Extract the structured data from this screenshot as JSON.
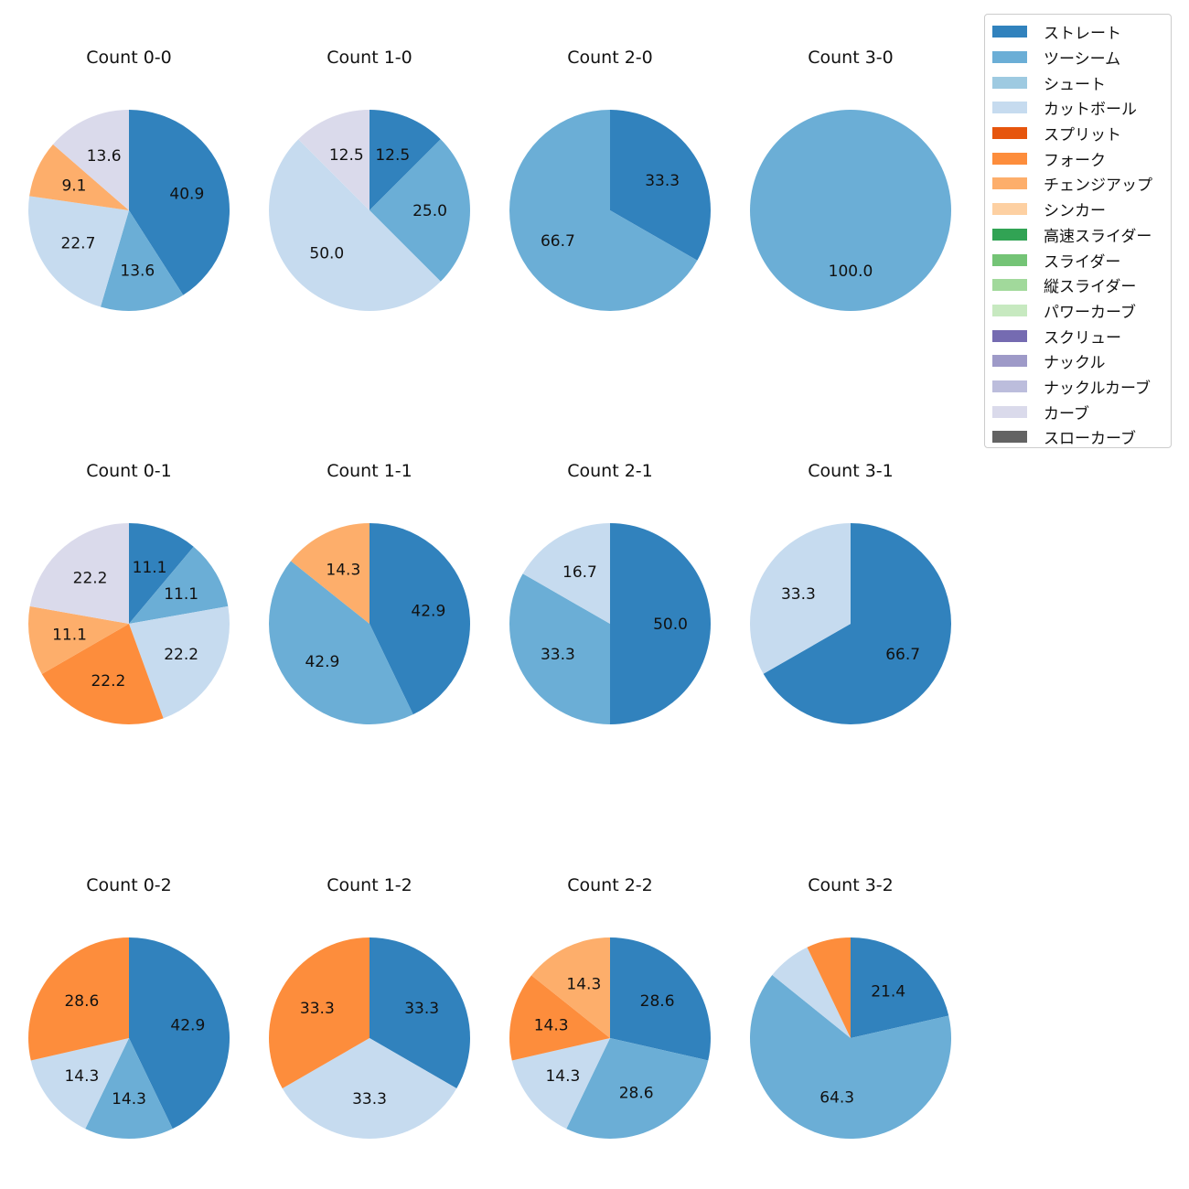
{
  "legend": [
    {
      "label": "ストレート",
      "color": "#3182bd"
    },
    {
      "label": "ツーシーム",
      "color": "#6baed6"
    },
    {
      "label": "シュート",
      "color": "#9ecae1"
    },
    {
      "label": "カットボール",
      "color": "#c6dbef"
    },
    {
      "label": "スプリット",
      "color": "#e6550d"
    },
    {
      "label": "フォーク",
      "color": "#fd8d3c"
    },
    {
      "label": "チェンジアップ",
      "color": "#fdae6b"
    },
    {
      "label": "シンカー",
      "color": "#fdd0a2"
    },
    {
      "label": "高速スライダー",
      "color": "#31a354"
    },
    {
      "label": "スライダー",
      "color": "#74c476"
    },
    {
      "label": "縦スライダー",
      "color": "#a1d99b"
    },
    {
      "label": "パワーカーブ",
      "color": "#c7e9c0"
    },
    {
      "label": "スクリュー",
      "color": "#756bb1"
    },
    {
      "label": "ナックル",
      "color": "#9e9ac8"
    },
    {
      "label": "ナックルカーブ",
      "color": "#bcbddc"
    },
    {
      "label": "カーブ",
      "color": "#dadaeb"
    },
    {
      "label": "スローカーブ",
      "color": "#636363"
    }
  ],
  "chart_data": [
    {
      "type": "pie",
      "title": "Count 0-0",
      "slices": [
        {
          "pitch": "ストレート",
          "value": 40.9,
          "label": "40.9"
        },
        {
          "pitch": "ツーシーム",
          "value": 13.6,
          "label": "13.6"
        },
        {
          "pitch": "カットボール",
          "value": 22.7,
          "label": "22.7"
        },
        {
          "pitch": "チェンジアップ",
          "value": 9.1,
          "label": "9.1"
        },
        {
          "pitch": "カーブ",
          "value": 13.6,
          "label": "13.6"
        }
      ]
    },
    {
      "type": "pie",
      "title": "Count 1-0",
      "slices": [
        {
          "pitch": "ストレート",
          "value": 12.5,
          "label": "12.5"
        },
        {
          "pitch": "ツーシーム",
          "value": 25.0,
          "label": "25.0"
        },
        {
          "pitch": "カットボール",
          "value": 50.0,
          "label": "50.0"
        },
        {
          "pitch": "カーブ",
          "value": 12.5,
          "label": "12.5"
        }
      ]
    },
    {
      "type": "pie",
      "title": "Count 2-0",
      "slices": [
        {
          "pitch": "ストレート",
          "value": 33.3,
          "label": "33.3"
        },
        {
          "pitch": "ツーシーム",
          "value": 66.7,
          "label": "66.7"
        }
      ]
    },
    {
      "type": "pie",
      "title": "Count 3-0",
      "slices": [
        {
          "pitch": "ツーシーム",
          "value": 100.0,
          "label": "100.0"
        }
      ]
    },
    {
      "type": "pie",
      "title": "Count 0-1",
      "slices": [
        {
          "pitch": "ストレート",
          "value": 11.1,
          "label": "11.1"
        },
        {
          "pitch": "ツーシーム",
          "value": 11.1,
          "label": "11.1"
        },
        {
          "pitch": "カットボール",
          "value": 22.2,
          "label": "22.2"
        },
        {
          "pitch": "フォーク",
          "value": 22.2,
          "label": "22.2"
        },
        {
          "pitch": "チェンジアップ",
          "value": 11.1,
          "label": "11.1"
        },
        {
          "pitch": "カーブ",
          "value": 22.2,
          "label": "22.2"
        }
      ]
    },
    {
      "type": "pie",
      "title": "Count 1-1",
      "slices": [
        {
          "pitch": "ストレート",
          "value": 42.9,
          "label": "42.9"
        },
        {
          "pitch": "ツーシーム",
          "value": 42.9,
          "label": "42.9"
        },
        {
          "pitch": "チェンジアップ",
          "value": 14.3,
          "label": "14.3"
        }
      ]
    },
    {
      "type": "pie",
      "title": "Count 2-1",
      "slices": [
        {
          "pitch": "ストレート",
          "value": 50.0,
          "label": "50.0"
        },
        {
          "pitch": "ツーシーム",
          "value": 33.3,
          "label": "33.3"
        },
        {
          "pitch": "カットボール",
          "value": 16.7,
          "label": "16.7"
        }
      ]
    },
    {
      "type": "pie",
      "title": "Count 3-1",
      "slices": [
        {
          "pitch": "ストレート",
          "value": 66.7,
          "label": "66.7"
        },
        {
          "pitch": "カットボール",
          "value": 33.3,
          "label": "33.3"
        }
      ]
    },
    {
      "type": "pie",
      "title": "Count 0-2",
      "slices": [
        {
          "pitch": "ストレート",
          "value": 42.9,
          "label": "42.9"
        },
        {
          "pitch": "ツーシーム",
          "value": 14.3,
          "label": "14.3"
        },
        {
          "pitch": "カットボール",
          "value": 14.3,
          "label": "14.3"
        },
        {
          "pitch": "フォーク",
          "value": 28.6,
          "label": "28.6"
        }
      ]
    },
    {
      "type": "pie",
      "title": "Count 1-2",
      "slices": [
        {
          "pitch": "ストレート",
          "value": 33.3,
          "label": "33.3"
        },
        {
          "pitch": "カットボール",
          "value": 33.3,
          "label": "33.3"
        },
        {
          "pitch": "フォーク",
          "value": 33.3,
          "label": "33.3"
        }
      ]
    },
    {
      "type": "pie",
      "title": "Count 2-2",
      "slices": [
        {
          "pitch": "ストレート",
          "value": 28.6,
          "label": "28.6"
        },
        {
          "pitch": "ツーシーム",
          "value": 28.6,
          "label": "28.6"
        },
        {
          "pitch": "カットボール",
          "value": 14.3,
          "label": "14.3"
        },
        {
          "pitch": "フォーク",
          "value": 14.3,
          "label": "14.3"
        },
        {
          "pitch": "チェンジアップ",
          "value": 14.3,
          "label": "14.3"
        }
      ]
    },
    {
      "type": "pie",
      "title": "Count 3-2",
      "slices": [
        {
          "pitch": "ストレート",
          "value": 21.4,
          "label": "21.4"
        },
        {
          "pitch": "ツーシーム",
          "value": 64.3,
          "label": "64.3"
        },
        {
          "pitch": "カットボール",
          "value": 7.1,
          "label": ""
        },
        {
          "pitch": "フォーク",
          "value": 7.1,
          "label": ""
        }
      ]
    }
  ]
}
